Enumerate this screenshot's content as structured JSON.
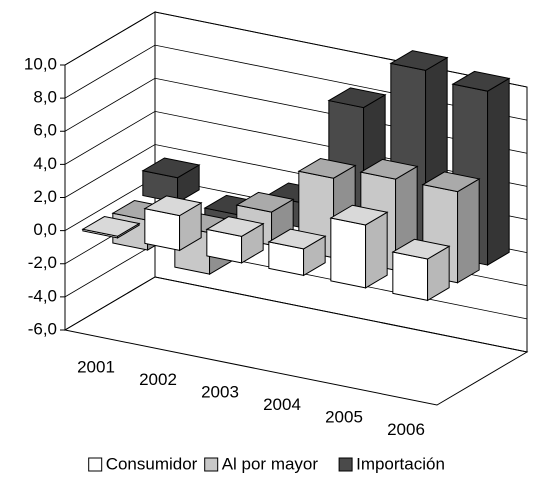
{
  "chart_data": {
    "type": "bar3d",
    "categories": [
      "2001",
      "2002",
      "2003",
      "2004",
      "2005",
      "2006"
    ],
    "series": [
      {
        "name": "Consumidor",
        "color": "#ffffff",
        "values": [
          0.1,
          2.1,
          1.6,
          1.6,
          3.8,
          2.5
        ]
      },
      {
        "name": "Al por mayor",
        "color": "#c8c8c8",
        "values": [
          -1.8,
          -2.5,
          2.0,
          4.8,
          5.5,
          5.5
        ]
      },
      {
        "name": "Importación",
        "color": "#4a4a4a",
        "values": [
          1.5,
          -2.0,
          1.5,
          8.0,
          11.0,
          10.5
        ]
      }
    ],
    "ylim": [
      -6,
      10
    ],
    "yticks": [
      {
        "value": -6,
        "label": "-6,0"
      },
      {
        "value": -4,
        "label": "-4,0"
      },
      {
        "value": -2,
        "label": "-2,0"
      },
      {
        "value": 0,
        "label": "0,0"
      },
      {
        "value": 2,
        "label": "2,0"
      },
      {
        "value": 4,
        "label": "4,0"
      },
      {
        "value": 6,
        "label": "6,0"
      },
      {
        "value": 8,
        "label": "8,0"
      },
      {
        "value": 10,
        "label": "10,0"
      }
    ],
    "grid": true,
    "legend": "bottom"
  }
}
